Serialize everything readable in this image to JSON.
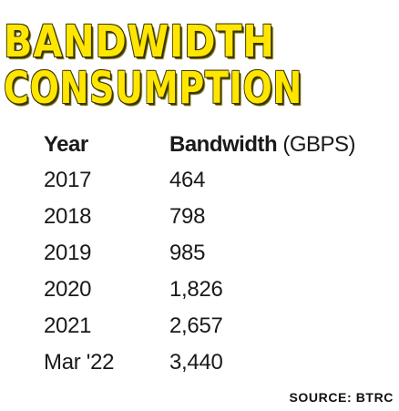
{
  "chart_data": {
    "type": "table",
    "title_line_1": "BANDWIDTH",
    "title_line_2": "CONSUMPTION",
    "columns": [
      "Year",
      "Bandwidth"
    ],
    "column_unit": "(GBPS)",
    "rows": [
      {
        "year": "2017",
        "bandwidth": "464"
      },
      {
        "year": "2018",
        "bandwidth": "798"
      },
      {
        "year": "2019",
        "bandwidth": "985"
      },
      {
        "year": "2020",
        "bandwidth": "1,826"
      },
      {
        "year": "2021",
        "bandwidth": "2,657"
      },
      {
        "year": "Mar '22",
        "bandwidth": "3,440"
      }
    ],
    "values": [
      464,
      798,
      985,
      1826,
      2657,
      3440
    ],
    "categories": [
      "2017",
      "2018",
      "2019",
      "2020",
      "2021",
      "Mar '22"
    ],
    "source": "SOURCE: BTRC"
  },
  "colors": {
    "title": "#ffe600",
    "title_outline": "#3a3500",
    "text": "#1a1a1a"
  }
}
